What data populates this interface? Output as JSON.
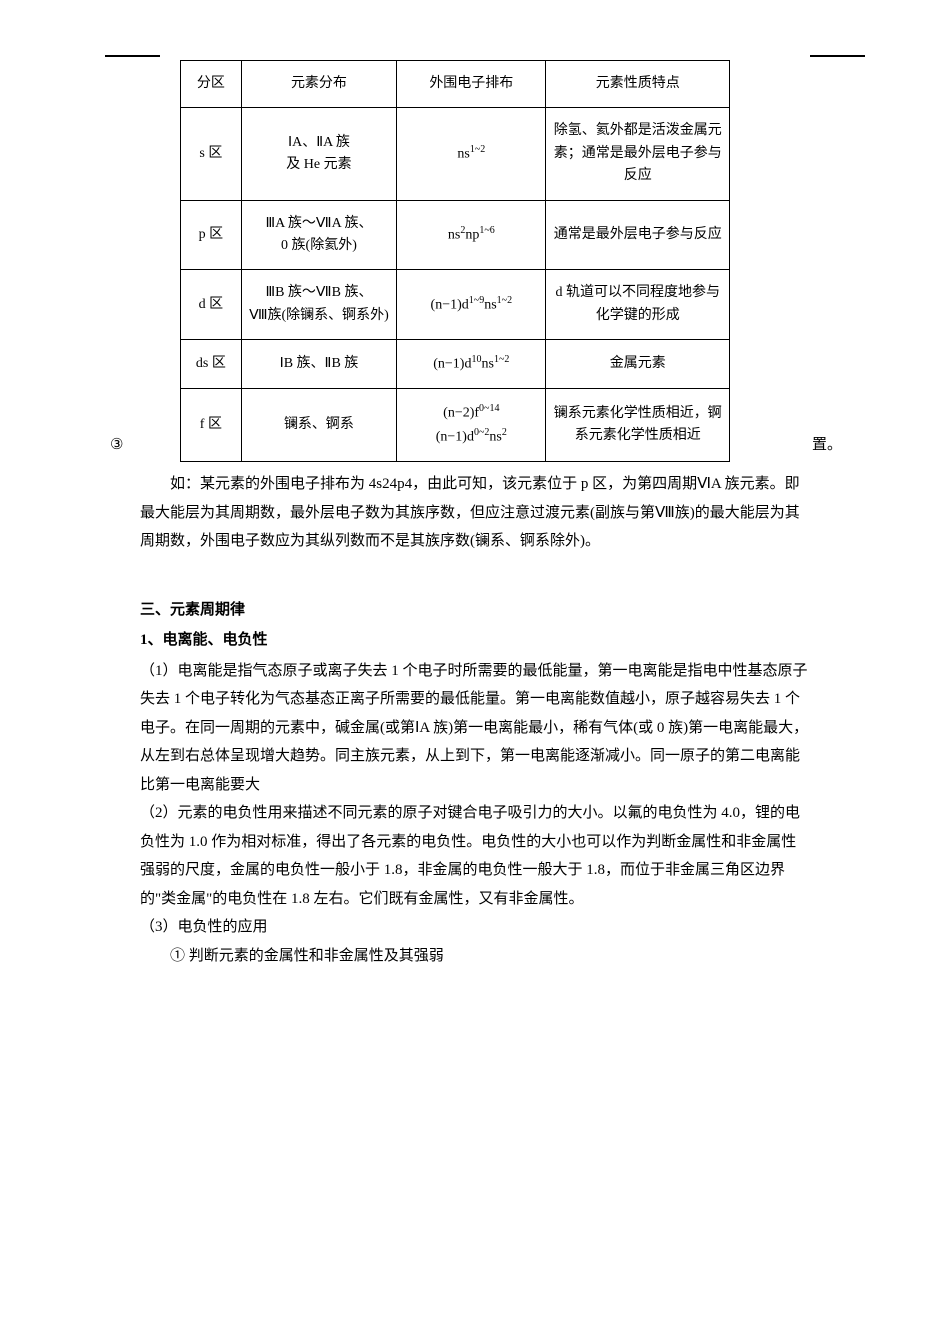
{
  "table": {
    "headers": [
      "分区",
      "元素分布",
      "外围电子排布",
      "元素性质特点"
    ],
    "rows": [
      {
        "zone": "s 区",
        "dist": "ⅠA、ⅡA 族\n及 He 元素",
        "elec": "ns<sup>1~2</sup>",
        "prop": "除氢、氦外都是活泼金属元素；通常是最外层电子参与反应"
      },
      {
        "zone": "p 区",
        "dist": "ⅢA 族～ⅦA 族、\n0 族(除氦外)",
        "elec": "ns<sup>2</sup>np<sup>1~6</sup>",
        "prop": "通常是最外层电子参与反应"
      },
      {
        "zone": "d 区",
        "dist": "ⅢB 族～ⅦB 族、\nⅧ族(除镧系、锕系外)",
        "elec": "(n−1)d<sup>1~9</sup>ns<sup>1~2</sup>",
        "prop": "d 轨道可以不同程度地参与化学键的形成"
      },
      {
        "zone": "ds 区",
        "dist": "ⅠB 族、ⅡB 族",
        "elec": "(n−1)d<sup>10</sup>ns<sup>1~2</sup>",
        "prop": "金属元素"
      },
      {
        "zone": "f 区",
        "dist": "镧系、锕系",
        "elec": "(n−2)f<sup>0~14</sup><br>(n−1)d<sup>0~2</sup>ns<sup>2</sup>",
        "prop": "镧系元素化学性质相近，锕系元素化学性质相近"
      }
    ]
  },
  "mark3": "③",
  "markRight": "置。",
  "para1": "如：某元素的外围电子排布为 4s24p4，由此可知，该元素位于 p 区，为第四周期ⅥA 族元素。即最大能层为其周期数，最外层电子数为其族序数，但应注意过渡元素(副族与第Ⅷ族)的最大能层为其周期数，外围电子数应为其纵列数而不是其族序数(镧系、锕系除外)。",
  "section3": "三、元素周期律",
  "sub1": "1、电离能、电负性",
  "p1_1": "（1）电离能是指气态原子或离子失去 1 个电子时所需要的最低能量，第一电离能是指电中性基态原子失去 1 个电子转化为气态基态正离子所需要的最低能量。第一电离能数值越小，原子越容易失去 1 个电子。在同一周期的元素中，碱金属(或第ⅠA 族)第一电离能最小，稀有气体(或 0 族)第一电离能最大，从左到右总体呈现增大趋势。同主族元素，从上到下，第一电离能逐渐减小。同一原子的第二电离能比第一电离能要大",
  "p1_2": "（2）元素的电负性用来描述不同元素的原子对键合电子吸引力的大小。以氟的电负性为 4.0，锂的电负性为 1.0 作为相对标准，得出了各元素的电负性。电负性的大小也可以作为判断金属性和非金属性强弱的尺度，金属的电负性一般小于 1.8，非金属的电负性一般大于 1.8，而位于非金属三角区边界的\"类金属\"的电负性在 1.8 左右。它们既有金属性，又有非金属性。",
  "p1_3": "（3）电负性的应用",
  "p1_3_1": "① 判断元素的金属性和非金属性及其强弱"
}
